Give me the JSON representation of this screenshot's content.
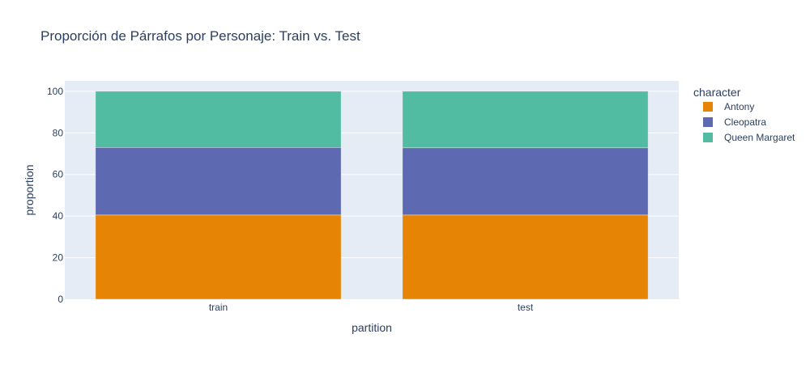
{
  "chart_data": {
    "type": "bar",
    "barmode": "stack",
    "title": "Proporción de Párrafos por Personaje: Train vs. Test",
    "xlabel": "partition",
    "ylabel": "proportion",
    "categories": [
      "train",
      "test"
    ],
    "ylim": [
      0,
      105
    ],
    "yticks": [
      0,
      20,
      40,
      60,
      80,
      100
    ],
    "grid": true,
    "legend": {
      "title": "character",
      "placement": "right"
    },
    "series": [
      {
        "name": "Antony",
        "color": "#e68405",
        "values": [
          40.5,
          40.5
        ]
      },
      {
        "name": "Cleopatra",
        "color": "#5d69b1",
        "values": [
          32.5,
          32.3
        ]
      },
      {
        "name": "Queen Margaret",
        "color": "#52bca3",
        "values": [
          27.0,
          27.2
        ]
      }
    ],
    "colors": {
      "plot_background": "#e5ecf6",
      "gridline": "#ffffff",
      "text": "#2a3f5f"
    }
  }
}
